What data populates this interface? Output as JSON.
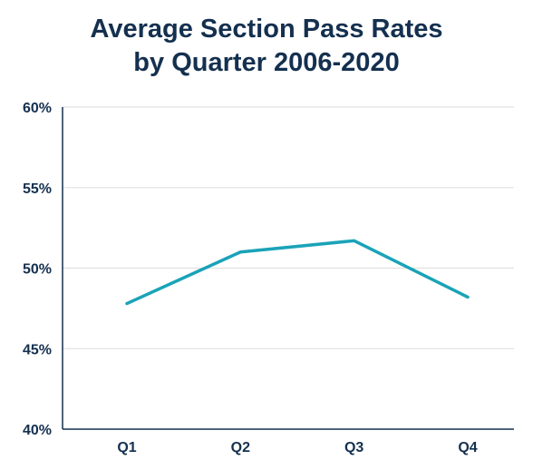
{
  "chart_data": {
    "type": "line",
    "title_lines": [
      "Average Section Pass Rates",
      "by Quarter 2006-2020"
    ],
    "categories": [
      "Q1",
      "Q2",
      "Q3",
      "Q4"
    ],
    "series": [
      {
        "values": [
          47.8,
          51.0,
          51.7,
          48.2
        ]
      }
    ],
    "ylim": [
      40,
      60
    ],
    "yticks": [
      {
        "value": 40,
        "label": "40%"
      },
      {
        "value": 45,
        "label": "45%"
      },
      {
        "value": 50,
        "label": "50%"
      },
      {
        "value": 55,
        "label": "55%"
      },
      {
        "value": 60,
        "label": "60%"
      }
    ],
    "grid": "horizontal",
    "line_color": "#1aa3b8",
    "text_color": "#14304f",
    "grid_color": "#dddddd",
    "axis_color": "#14304f"
  }
}
